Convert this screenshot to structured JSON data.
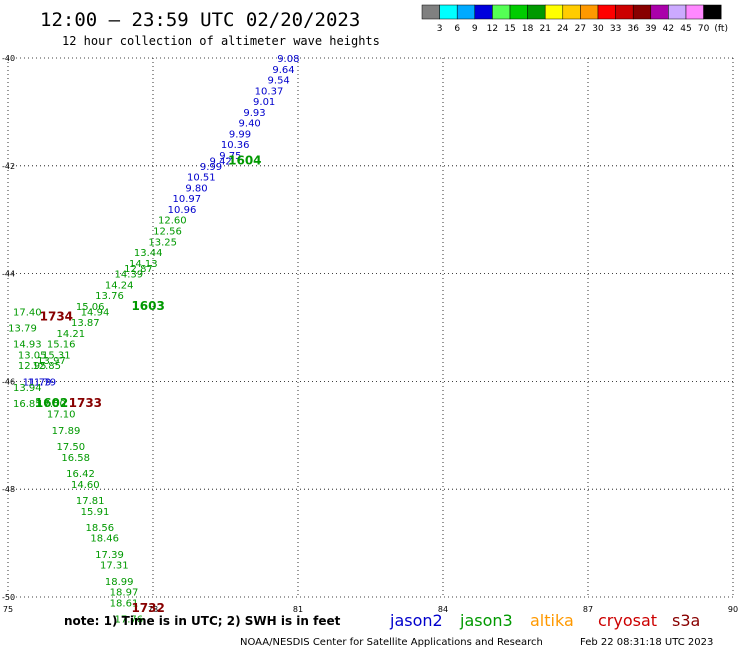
{
  "header": {
    "title": "12:00 — 23:59 UTC 02/20/2023",
    "subtitle": "12 hour collection of altimeter wave heights"
  },
  "colorbar": {
    "colors": [
      "#808080",
      "#00ffff",
      "#00aaff",
      "#0000dd",
      "#55ff55",
      "#00cc00",
      "#009900",
      "#ffff00",
      "#ffcc00",
      "#ff9900",
      "#ff0000",
      "#cc0000",
      "#880000",
      "#aa00aa",
      "#ccaaff",
      "#ff88ff",
      "#000000"
    ],
    "labels": [
      "3",
      "6",
      "9",
      "12",
      "15",
      "18",
      "21",
      "24",
      "27",
      "30",
      "33",
      "36",
      "39",
      "42",
      "45",
      "70",
      "(ft)"
    ]
  },
  "chart_data": {
    "type": "scatter",
    "title": "12:00 — 23:59 UTC 02/20/2023",
    "subtitle": "12 hour collection of altimeter wave heights",
    "xlim": [
      75,
      90
    ],
    "ylim": [
      -50,
      -40
    ],
    "x_ticks": [
      "75",
      "78",
      "81",
      "84",
      "87",
      "90"
    ],
    "y_ticks": [
      "-40",
      "-42",
      "-44",
      "-46",
      "-48",
      "-50"
    ],
    "grid": true,
    "value_unit": "ft",
    "series": [
      {
        "name": "jason2",
        "color": "#0000cc",
        "points": [
          {
            "lon": 80.8,
            "lat": -40.0,
            "swh": "9.08"
          },
          {
            "lon": 80.7,
            "lat": -40.2,
            "swh": "9.64"
          },
          {
            "lon": 80.6,
            "lat": -40.4,
            "swh": "9.54"
          },
          {
            "lon": 80.4,
            "lat": -40.6,
            "swh": "10.37"
          },
          {
            "lon": 80.3,
            "lat": -40.8,
            "swh": "9.01"
          },
          {
            "lon": 80.1,
            "lat": -41.0,
            "swh": "9.93"
          },
          {
            "lon": 80.0,
            "lat": -41.2,
            "swh": "9.40"
          },
          {
            "lon": 79.8,
            "lat": -41.4,
            "swh": "9.99"
          },
          {
            "lon": 79.7,
            "lat": -41.6,
            "swh": "10.36"
          },
          {
            "lon": 79.6,
            "lat": -41.8,
            "swh": "9.75"
          },
          {
            "lon": 79.4,
            "lat": -41.9,
            "swh": "9.42"
          },
          {
            "lon": 79.2,
            "lat": -42.0,
            "swh": "9.99"
          },
          {
            "lon": 79.0,
            "lat": -42.2,
            "swh": "10.51"
          },
          {
            "lon": 78.9,
            "lat": -42.4,
            "swh": "9.80"
          },
          {
            "lon": 78.7,
            "lat": -42.6,
            "swh": "10.97"
          },
          {
            "lon": 78.6,
            "lat": -42.8,
            "swh": "10.96"
          },
          {
            "lon": 75.6,
            "lat": -46.0,
            "swh": "11.79"
          },
          {
            "lon": 75.7,
            "lat": -46.0,
            "swh": "11.79"
          }
        ]
      },
      {
        "name": "jason3",
        "color": "#009900",
        "points": [
          {
            "lon": 78.4,
            "lat": -43.0,
            "swh": "12.60"
          },
          {
            "lon": 78.3,
            "lat": -43.2,
            "swh": "12.56"
          },
          {
            "lon": 78.2,
            "lat": -43.4,
            "swh": "13.25"
          },
          {
            "lon": 77.9,
            "lat": -43.6,
            "swh": "13.44"
          },
          {
            "lon": 77.8,
            "lat": -43.8,
            "swh": "14.13"
          },
          {
            "lon": 77.7,
            "lat": -43.9,
            "swh": "12.87"
          },
          {
            "lon": 77.5,
            "lat": -44.0,
            "swh": "14.39"
          },
          {
            "lon": 77.3,
            "lat": -44.2,
            "swh": "14.24"
          },
          {
            "lon": 77.1,
            "lat": -44.4,
            "swh": "13.76"
          },
          {
            "lon": 76.7,
            "lat": -44.6,
            "swh": "15.06"
          },
          {
            "lon": 76.8,
            "lat": -44.7,
            "swh": "14.94"
          },
          {
            "lon": 76.6,
            "lat": -44.9,
            "swh": "13.87"
          },
          {
            "lon": 76.3,
            "lat": -45.1,
            "swh": "14.21"
          },
          {
            "lon": 76.1,
            "lat": -45.3,
            "swh": "15.16"
          },
          {
            "lon": 76.0,
            "lat": -45.5,
            "swh": "15.31"
          },
          {
            "lon": 75.9,
            "lat": -45.6,
            "swh": "13.97"
          },
          {
            "lon": 75.8,
            "lat": -45.7,
            "swh": "12.85"
          },
          {
            "lon": 75.4,
            "lat": -44.7,
            "swh": "17.40"
          },
          {
            "lon": 75.3,
            "lat": -45.0,
            "swh": "13.79"
          },
          {
            "lon": 75.4,
            "lat": -45.3,
            "swh": "14.93"
          },
          {
            "lon": 75.5,
            "lat": -45.5,
            "swh": "13.05"
          },
          {
            "lon": 75.5,
            "lat": -45.7,
            "swh": "12.95"
          },
          {
            "lon": 75.4,
            "lat": -46.1,
            "swh": "13.94"
          },
          {
            "lon": 75.4,
            "lat": -46.4,
            "swh": "16.85"
          },
          {
            "lon": 75.9,
            "lat": -46.4,
            "swh": "17.50"
          },
          {
            "lon": 76.1,
            "lat": -46.6,
            "swh": "17.10"
          },
          {
            "lon": 76.2,
            "lat": -46.9,
            "swh": "17.89"
          },
          {
            "lon": 76.3,
            "lat": -47.2,
            "swh": "17.50"
          },
          {
            "lon": 76.4,
            "lat": -47.4,
            "swh": "16.58"
          },
          {
            "lon": 76.5,
            "lat": -47.7,
            "swh": "16.42"
          },
          {
            "lon": 76.6,
            "lat": -47.9,
            "swh": "14.60"
          },
          {
            "lon": 76.7,
            "lat": -48.2,
            "swh": "17.81"
          },
          {
            "lon": 76.8,
            "lat": -48.4,
            "swh": "15.91"
          },
          {
            "lon": 76.9,
            "lat": -48.7,
            "swh": "18.56"
          },
          {
            "lon": 77.0,
            "lat": -48.9,
            "swh": "18.46"
          },
          {
            "lon": 77.1,
            "lat": -49.2,
            "swh": "17.39"
          },
          {
            "lon": 77.2,
            "lat": -49.4,
            "swh": "17.31"
          },
          {
            "lon": 77.3,
            "lat": -49.7,
            "swh": "18.99"
          },
          {
            "lon": 77.4,
            "lat": -49.9,
            "swh": "18.97"
          },
          {
            "lon": 77.4,
            "lat": -50.1,
            "swh": "18.61"
          },
          {
            "lon": 77.5,
            "lat": -50.4,
            "swh": "17.76"
          }
        ]
      }
    ],
    "pass_times": [
      {
        "text": "1604",
        "color": "#009900",
        "lon": 79.9,
        "lat": -41.9
      },
      {
        "text": "1603",
        "color": "#009900",
        "lon": 77.9,
        "lat": -44.6
      },
      {
        "text": "1602",
        "color": "#009900",
        "lon": 75.9,
        "lat": -46.4
      },
      {
        "text": "1734",
        "color": "#880000",
        "lon": 76.0,
        "lat": -44.8
      },
      {
        "text": "1733",
        "color": "#880000",
        "lon": 76.6,
        "lat": -46.4
      },
      {
        "text": "1732",
        "color": "#880000",
        "lon": 77.9,
        "lat": -50.2
      }
    ]
  },
  "footer": {
    "note": "note: 1) Time is in UTC; 2) SWH is in feet",
    "satellites": [
      {
        "name": "jason2",
        "color": "#0000cc"
      },
      {
        "name": "jason3",
        "color": "#009900"
      },
      {
        "name": "altika",
        "color": "#ff9900"
      },
      {
        "name": "cryosat",
        "color": "#cc0000"
      },
      {
        "name": "s3a",
        "color": "#880000"
      }
    ],
    "credit": "NOAA/NESDIS Center for Satellite Applications and Research",
    "timestamp": "Feb 22 08:31:18 UTC 2023"
  }
}
